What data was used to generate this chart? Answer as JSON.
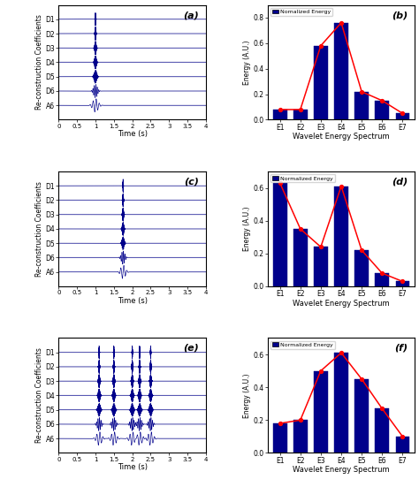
{
  "panel_labels": [
    "(a)",
    "(b)",
    "(c)",
    "(d)",
    "(e)",
    "(f)"
  ],
  "wt_labels": [
    "D1",
    "D2",
    "D3",
    "D4",
    "D5",
    "D6",
    "A6"
  ],
  "time_range": [
    0,
    4
  ],
  "time_ticks": [
    0,
    0.5,
    1,
    1.5,
    2,
    2.5,
    3,
    3.5,
    4
  ],
  "xlabel_wt": "Time (s)",
  "ylabel_wt": "Re-construction Coefficients",
  "xlabel_energy": "Wavelet Energy Spectrum",
  "ylabel_energy": "Energy (A.U.)",
  "energy_labels": [
    "E1",
    "E2",
    "E3",
    "E4",
    "E5",
    "E6",
    "E7"
  ],
  "bar_color": "#00008B",
  "line_color": "#FF0000",
  "legend_labels": [
    "Nomalized Energy",
    "Normalized Energy",
    "Normalized Energy"
  ],
  "energy_a": [
    0.08,
    0.08,
    0.58,
    0.76,
    0.22,
    0.15,
    0.05
  ],
  "energy_d": [
    0.63,
    0.35,
    0.24,
    0.61,
    0.22,
    0.08,
    0.03
  ],
  "energy_f": [
    0.18,
    0.2,
    0.5,
    0.61,
    0.45,
    0.27,
    0.1
  ],
  "ylim_a": [
    0,
    0.9
  ],
  "ylim_d": [
    0,
    0.7
  ],
  "ylim_f": [
    0,
    0.7
  ],
  "yticks_a": [
    0.0,
    0.2,
    0.4,
    0.6,
    0.8
  ],
  "yticks_d": [
    0.0,
    0.2,
    0.4,
    0.6
  ],
  "yticks_f": [
    0.0,
    0.2,
    0.4,
    0.6
  ],
  "panel_a_event_time": 1.0,
  "panel_c_event_time": 1.75,
  "panel_e_event_times": [
    1.1,
    1.5,
    2.0,
    2.2,
    2.5
  ],
  "signal_color": "#00008B",
  "wt_line_widths": [
    0.5,
    0.5,
    0.5,
    0.5,
    0.5,
    0.5,
    0.5
  ],
  "wt_freqs_a": [
    80,
    40,
    20,
    10,
    5,
    2.5,
    1.2
  ],
  "wt_widths_a": [
    8,
    12,
    18,
    25,
    35,
    50,
    70
  ],
  "wt_amps_a": [
    1.0,
    0.8,
    1.0,
    0.9,
    0.6,
    0.45,
    0.15
  ],
  "wt_freqs_c": [
    80,
    40,
    20,
    10,
    5,
    2.5,
    1.2
  ],
  "wt_widths_c": [
    6,
    10,
    15,
    22,
    30,
    45,
    60
  ],
  "wt_amps_c": [
    0.3,
    0.5,
    0.9,
    0.85,
    0.55,
    0.3,
    0.08
  ],
  "wt_freqs_e": [
    80,
    40,
    20,
    10,
    5,
    2.5,
    1.2
  ],
  "wt_widths_e": [
    7,
    11,
    17,
    24,
    33,
    48,
    65
  ],
  "wt_amps_e": [
    0.7,
    0.9,
    1.0,
    0.95,
    0.65,
    0.5,
    0.25
  ]
}
